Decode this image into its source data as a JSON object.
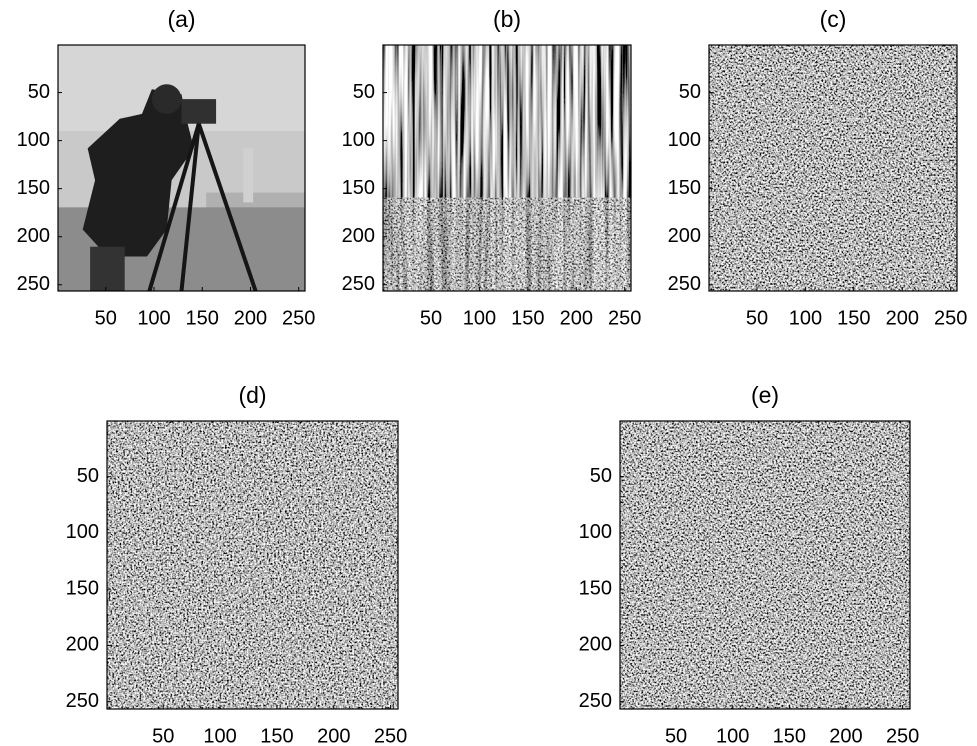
{
  "chart_data": [
    {
      "type": "image",
      "title": "(a)",
      "xlim": [
        0.5,
        256.5
      ],
      "ylim": [
        0.5,
        256.5
      ],
      "y_reversed": true,
      "xticks": [
        50,
        100,
        150,
        200,
        250
      ],
      "yticks": [
        50,
        100,
        150,
        200,
        250
      ]
    },
    {
      "type": "image",
      "title": "(b)",
      "xlim": [
        0.5,
        256.5
      ],
      "ylim": [
        0.5,
        256.5
      ],
      "y_reversed": true,
      "xticks": [
        50,
        100,
        150,
        200,
        250
      ],
      "yticks": [
        50,
        100,
        150,
        200,
        250
      ]
    },
    {
      "type": "image",
      "title": "(c)",
      "xlim": [
        0.5,
        256.5
      ],
      "ylim": [
        0.5,
        256.5
      ],
      "y_reversed": true,
      "xticks": [
        50,
        100,
        150,
        200,
        250
      ],
      "yticks": [
        50,
        100,
        150,
        200,
        250
      ]
    },
    {
      "type": "image",
      "title": "(d)",
      "xlim": [
        0.5,
        256.5
      ],
      "ylim": [
        0.5,
        256.5
      ],
      "y_reversed": true,
      "xticks": [
        50,
        100,
        150,
        200,
        250
      ],
      "yticks": [
        50,
        100,
        150,
        200,
        250
      ]
    },
    {
      "type": "image",
      "title": "(e)",
      "xlim": [
        0.5,
        256.5
      ],
      "ylim": [
        0.5,
        256.5
      ],
      "y_reversed": true,
      "xticks": [
        50,
        100,
        150,
        200,
        250
      ],
      "yticks": [
        50,
        100,
        150,
        200,
        250
      ]
    }
  ]
}
